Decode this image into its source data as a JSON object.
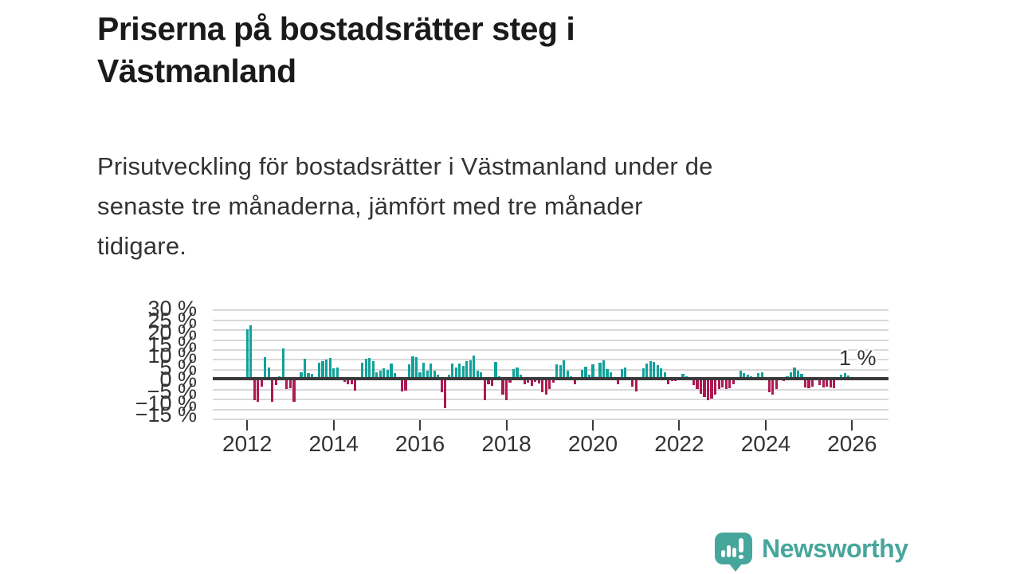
{
  "title": {
    "lines": [
      "Priserna på bostadsrätter steg i",
      "Västmanland"
    ]
  },
  "subtitle": {
    "lines": [
      "Prisutveckling för bostadsrätter i Västmanland under de",
      "senaste tre månaderna, jämfört med tre månader",
      "tidigare."
    ]
  },
  "annotation": {
    "latest_label": "1 %"
  },
  "footer": {
    "brand": "Newsworthy"
  },
  "colors": {
    "positive_bar": "#11a29a",
    "negative_bar": "#ad1a52",
    "baseline": "#3a3a3a",
    "gridline": "#d9d9d9",
    "axis_text": "#333333",
    "title_text": "#1a1a1a",
    "logo_teal": "#47a69c"
  },
  "chart_data": {
    "type": "bar",
    "description": "Prisutveckling för bostadsrätter i Västmanland under de senaste tre månaderna, jämfört med tre månader tidigare",
    "unit": "%",
    "frequency": "monthly",
    "start_month": "2012-01",
    "end_month": "2026-01",
    "latest_value_pct": 1,
    "ylim": [
      -20,
      35
    ],
    "gridline_step_pct": 5,
    "grid": true,
    "y_tick_labels": [
      "30 %",
      "25 %",
      "20 %",
      "15 %",
      "10 %",
      "5 %",
      "0 %",
      "−5 %",
      "−10 %",
      "−15 %"
    ],
    "y_tick_values": [
      30,
      25,
      20,
      15,
      10,
      5,
      0,
      -5,
      -10,
      -15
    ],
    "x_tick_labels": [
      "2012",
      "2014",
      "2016",
      "2018",
      "2020",
      "2022",
      "2024",
      "2026"
    ],
    "values": [
      24.9,
      27.2,
      -10.9,
      -11.5,
      -3.9,
      10.9,
      5.8,
      -11.5,
      -3.2,
      1.2,
      15.5,
      -5.2,
      -4.6,
      -11.5,
      null,
      3.2,
      10.1,
      2.8,
      2.4,
      null,
      8.2,
      8.8,
      9.8,
      10.5,
      5.5,
      5.8,
      null,
      -1.5,
      -2.5,
      -2.5,
      -5.9,
      null,
      8.2,
      10.1,
      10.7,
      8.8,
      3.5,
      4.2,
      5.5,
      4.6,
      7.9,
      2.8,
      null,
      -6.3,
      -5.9,
      7.5,
      11.5,
      10.9,
      3.2,
      8.2,
      4.2,
      7.6,
      4.2,
      2.1,
      -6.6,
      -14.6,
      2.1,
      7.8,
      5.8,
      7.8,
      6.6,
      8.8,
      9.5,
      11.8,
      4.2,
      3.5,
      -10.6,
      -2.5,
      -3.6,
      8.4,
      1.2,
      -7.9,
      -10.9,
      -1.9,
      4.8,
      5.8,
      2.2,
      -2.5,
      -1.9,
      -3.6,
      -1.6,
      -2.3,
      -6.8,
      -7.9,
      -5.2,
      -1.9,
      7.5,
      6.8,
      9.5,
      4.2,
      1.2,
      -2.5,
      null,
      4.4,
      6.2,
      2.1,
      7.5,
      null,
      8.2,
      9.5,
      4.8,
      3.5,
      null,
      -2.8,
      4.8,
      5.8,
      null,
      -3.9,
      -6.3,
      null,
      5.5,
      7.6,
      8.8,
      8.4,
      6.8,
      5.5,
      3.5,
      -2.5,
      -1.2,
      -0.9,
      null,
      2.5,
      1.2,
      null,
      -3.2,
      -5.2,
      -7.6,
      -9.2,
      -10.9,
      -9.9,
      -7.9,
      -5.2,
      -4.2,
      -5.0,
      -4.6,
      -2.5,
      null,
      4.2,
      2.8,
      2.1,
      1.2,
      null,
      2.8,
      3.5,
      null,
      -6.8,
      -7.9,
      -5.0,
      null,
      -1.2,
      1.2,
      3.5,
      5.8,
      4.2,
      2.4,
      -4.2,
      -4.6,
      -3.9,
      null,
      -3.2,
      -4.2,
      -3.9,
      -4.2,
      -4.6,
      null,
      2.1,
      3.1,
      1.8,
      1.0
    ]
  }
}
